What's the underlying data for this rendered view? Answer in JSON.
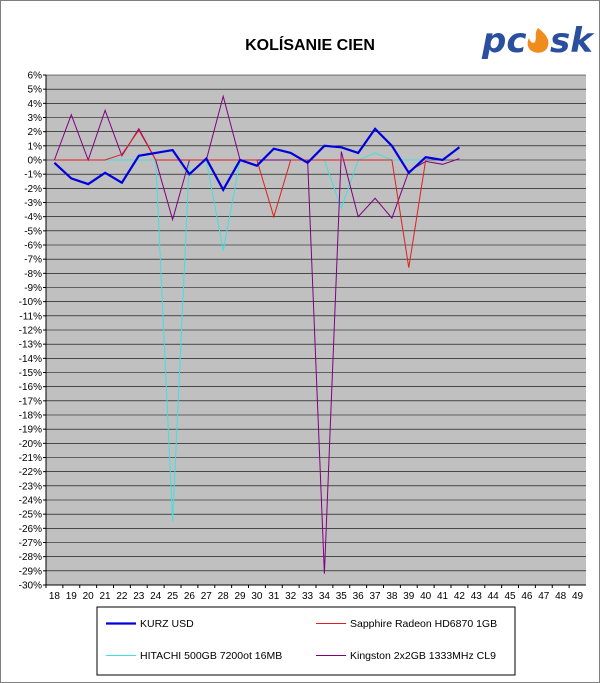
{
  "logo": {
    "text_left": "pc",
    "text_right": "sk",
    "color": "#2a4f9e",
    "flame_color": "#f08c1e"
  },
  "chart_data": {
    "type": "line",
    "title": "KOLÍSANIE CIEN",
    "xlabel": "",
    "ylabel": "",
    "x": [
      18,
      19,
      20,
      21,
      22,
      23,
      24,
      25,
      26,
      27,
      28,
      29,
      30,
      31,
      32,
      33,
      34,
      35,
      36,
      37,
      38,
      39,
      40,
      41,
      42,
      43,
      44,
      45,
      46,
      47,
      48,
      49
    ],
    "xlim": [
      18,
      49
    ],
    "ylim": [
      -30,
      6
    ],
    "y_tick_step": 1,
    "y_tick_format": "percent",
    "grid": true,
    "plot_background": "#c0c0c0",
    "legend_position": "bottom",
    "series": [
      {
        "name": "KURZ USD",
        "color": "#0000dd",
        "width": 2.2,
        "points": [
          [
            18,
            -0.2
          ],
          [
            19,
            -1.3
          ],
          [
            20,
            -1.7
          ],
          [
            21,
            -0.9
          ],
          [
            22,
            -1.6
          ],
          [
            23,
            0.3
          ],
          [
            24,
            0.5
          ],
          [
            25,
            0.7
          ],
          [
            26,
            -1.0
          ],
          [
            27,
            0.1
          ],
          [
            28,
            -2.1
          ],
          [
            29,
            0.0
          ],
          [
            30,
            -0.4
          ],
          [
            31,
            0.8
          ],
          [
            32,
            0.5
          ],
          [
            33,
            -0.2
          ],
          [
            34,
            1.0
          ],
          [
            35,
            0.9
          ],
          [
            36,
            0.5
          ],
          [
            37,
            2.2
          ],
          [
            38,
            1.0
          ],
          [
            39,
            -0.9
          ],
          [
            40,
            0.2
          ],
          [
            41,
            0.0
          ],
          [
            42,
            0.9
          ]
        ]
      },
      {
        "name": "Sapphire Radeon HD6870 1GB",
        "color": "#e02020",
        "width": 1,
        "points": [
          [
            18,
            0
          ],
          [
            19,
            0
          ],
          [
            20,
            0
          ],
          [
            21,
            0
          ],
          [
            22,
            0.4
          ],
          [
            23,
            2.1
          ],
          [
            24,
            0
          ],
          [
            25,
            0
          ],
          [
            26,
            0
          ],
          [
            27,
            0
          ],
          [
            28,
            0
          ],
          [
            29,
            0
          ],
          [
            30,
            0
          ],
          [
            31,
            -4.0
          ],
          [
            32,
            0
          ],
          [
            33,
            0
          ],
          [
            34,
            0
          ],
          [
            35,
            0
          ],
          [
            36,
            0
          ],
          [
            37,
            0
          ],
          [
            38,
            0
          ],
          [
            39,
            -7.6
          ],
          [
            40,
            0
          ]
        ]
      },
      {
        "name": "HITACHI 500GB 7200ot 16MB",
        "color": "#40e0e0",
        "width": 1,
        "points": [
          [
            18,
            0
          ],
          [
            19,
            0
          ],
          [
            20,
            0
          ],
          [
            21,
            0
          ],
          [
            22,
            0
          ],
          [
            23,
            0
          ],
          [
            24,
            0
          ],
          [
            25,
            -25.5
          ],
          [
            26,
            0
          ],
          [
            27,
            0
          ],
          [
            28,
            -6.4
          ],
          [
            29,
            0
          ],
          [
            30,
            0
          ],
          [
            31,
            0
          ],
          [
            32,
            0
          ],
          [
            33,
            0
          ],
          [
            34,
            0
          ],
          [
            35,
            -3.4
          ],
          [
            36,
            0
          ],
          [
            37,
            0.5
          ],
          [
            38,
            0
          ],
          [
            39,
            0
          ],
          [
            40,
            0
          ]
        ]
      },
      {
        "name": "Kingston 2x2GB 1333MHz CL9",
        "color": "#800080",
        "width": 1,
        "points": [
          [
            18,
            0
          ],
          [
            19,
            3.2
          ],
          [
            20,
            0
          ],
          [
            21,
            3.5
          ],
          [
            22,
            0.3
          ],
          [
            23,
            2.2
          ],
          [
            24,
            0
          ],
          [
            25,
            -4.2
          ],
          [
            26,
            0
          ],
          [
            27,
            0
          ],
          [
            28,
            4.5
          ],
          [
            29,
            0
          ],
          [
            30,
            0
          ],
          [
            31,
            0
          ],
          [
            32,
            0
          ],
          [
            33,
            0
          ],
          [
            34,
            -29.2
          ],
          [
            35,
            0.6
          ],
          [
            36,
            -4.0
          ],
          [
            37,
            -2.7
          ],
          [
            38,
            -4.1
          ],
          [
            39,
            -0.8
          ],
          [
            40,
            -0.1
          ],
          [
            41,
            -0.3
          ],
          [
            42,
            0.1
          ]
        ]
      }
    ]
  }
}
